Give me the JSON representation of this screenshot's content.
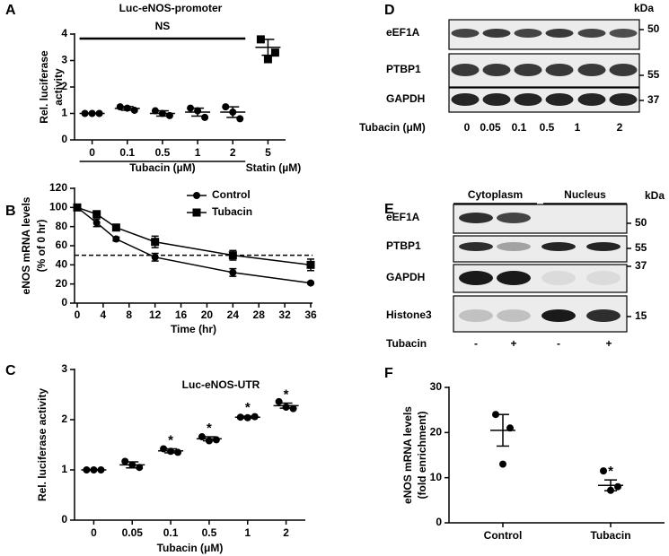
{
  "chart_data": [
    {
      "panel": "A",
      "type": "dotplot",
      "title": "Luc-eNOS-promoter",
      "categories": [
        "0",
        "0.1",
        "0.5",
        "1",
        "2",
        "5"
      ],
      "points": [
        [
          1,
          1,
          1
        ],
        [
          1.25,
          1.12,
          1.2
        ],
        [
          1.1,
          0.92,
          1.0
        ],
        [
          1.2,
          0.85,
          1.1
        ],
        [
          1.25,
          0.8,
          1.05
        ],
        [
          3.8,
          3.3,
          3.05
        ]
      ],
      "means": [
        1,
        1.19,
        1.0,
        1.05,
        1.05,
        3.5
      ],
      "errors": [
        0,
        0.07,
        0.1,
        0.15,
        0.2,
        0.3
      ],
      "markers": [
        "circle",
        "circle",
        "circle",
        "circle",
        "circle",
        "square"
      ],
      "ylim": [
        0,
        4
      ],
      "yticks": [
        0,
        1,
        2,
        3,
        4
      ],
      "ylabel": [
        "Rel. luciferase",
        "activity"
      ],
      "x_group_labels": [
        "Tubacin (µM)",
        "Statin (µM)"
      ],
      "annotation": "NS",
      "color": "#000000"
    },
    {
      "panel": "B",
      "type": "line",
      "x": [
        0,
        3,
        6,
        12,
        24,
        36
      ],
      "xlim": [
        0,
        36
      ],
      "xticks": [
        0,
        4,
        8,
        12,
        16,
        20,
        24,
        28,
        32,
        36
      ],
      "ylim": [
        0,
        120
      ],
      "yticks": [
        0,
        20,
        40,
        60,
        80,
        100,
        120
      ],
      "xlabel": "Time (hr)",
      "ylabel": [
        "eNOS mRNA levels",
        "(% of 0 hr)"
      ],
      "series": [
        {
          "name": "Control",
          "marker": "circle",
          "color": "#000000",
          "values": [
            100,
            84,
            67,
            48,
            32,
            21
          ],
          "errors": [
            2,
            4,
            2,
            4,
            4,
            1
          ]
        },
        {
          "name": "Tubacin",
          "marker": "square",
          "color": "#000000",
          "values": [
            100,
            93,
            79,
            64,
            50,
            40
          ],
          "errors": [
            3,
            3,
            2,
            6,
            5,
            6
          ]
        }
      ],
      "reference_line": 50,
      "legend": "top-right"
    },
    {
      "panel": "C",
      "type": "dotplot",
      "title": "Luc-eNOS-UTR",
      "categories": [
        "0",
        "0.05",
        "0.1",
        "0.5",
        "1",
        "2"
      ],
      "points": [
        [
          1,
          1,
          1
        ],
        [
          1.17,
          1.05,
          1.1
        ],
        [
          1.42,
          1.35,
          1.37
        ],
        [
          1.66,
          1.6,
          1.58
        ],
        [
          2.05,
          2.06,
          2.04
        ],
        [
          2.36,
          2.22,
          2.25
        ]
      ],
      "means": [
        1,
        1.1,
        1.38,
        1.62,
        2.05,
        2.28
      ],
      "errors": [
        0,
        0.06,
        0.04,
        0.04,
        0.02,
        0.05
      ],
      "markers": [
        "circle",
        "circle",
        "circle",
        "circle",
        "circle",
        "circle"
      ],
      "ylim": [
        0,
        3
      ],
      "yticks": [
        0,
        1,
        2,
        3
      ],
      "ylabel": [
        "Rel. luciferase activity"
      ],
      "xlabel": "Tubacin (μM)",
      "stars": [
        null,
        null,
        "*",
        "*",
        "*",
        "*"
      ],
      "color": "#000000"
    },
    {
      "panel": "F",
      "type": "dotplot",
      "categories": [
        "Control",
        "Tubacin"
      ],
      "points": [
        [
          24,
          21,
          13
        ],
        [
          11.5,
          8,
          7.2
        ]
      ],
      "means": [
        20.5,
        8.3
      ],
      "errors": [
        3.5,
        1.2
      ],
      "markers": [
        "circle",
        "circle"
      ],
      "ylim": [
        0,
        30
      ],
      "yticks": [
        0,
        10,
        20,
        30
      ],
      "ylabel": [
        "eNOS mRNA levels",
        "(fold enrichment)"
      ],
      "stars": [
        null,
        "*"
      ],
      "color": "#000000"
    }
  ],
  "blots": [
    {
      "panel": "D",
      "kda": "kDa",
      "rows": [
        {
          "label": "eEF1A",
          "marker": 50
        },
        {
          "label": "PTBP1",
          "marker": 55
        },
        {
          "label": "GAPDH",
          "marker": 37
        }
      ],
      "treatment_label": "Tubacin (μM)",
      "lanes": [
        "0",
        "0.05",
        "0.1",
        "0.5",
        "1",
        "2"
      ]
    },
    {
      "panel": "E",
      "kda": "kDa",
      "fractions": [
        "Cytoplasm",
        "Nucleus"
      ],
      "rows": [
        {
          "label": "eEF1A",
          "marker": 50
        },
        {
          "label": "PTBP1",
          "marker": 55
        },
        {
          "label": "GAPDH",
          "marker": 37
        },
        {
          "label": "Histone3",
          "marker": 15
        }
      ],
      "treatment_label": "Tubacin",
      "lanes": [
        "-",
        "+",
        "-",
        "+"
      ]
    }
  ]
}
